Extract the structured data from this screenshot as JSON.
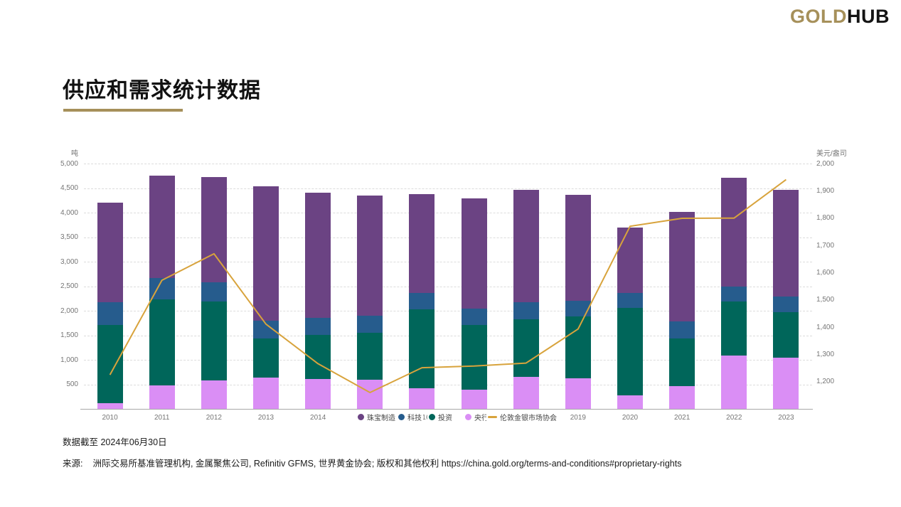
{
  "logo": {
    "part1": "GOLD",
    "part2": "HUB"
  },
  "page_title": "供应和需求统计数据",
  "footer": {
    "data_as_of": "数据截至 2024年06月30日",
    "source_label": "来源:",
    "source_text": "洲际交易所基准管理机构, 金属聚焦公司, Refinitiv GFMS, 世界黄金协会; 版权和其他权利 https://china.gold.org/terms-and-conditions#proprietary-rights"
  },
  "chart_data": {
    "type": "bar",
    "subtype": "stacked-bars-with-line",
    "categories": [
      "2010",
      "2011",
      "2012",
      "2013",
      "2014",
      "2015",
      "2016",
      "2017",
      "2018",
      "2019",
      "2020",
      "2021",
      "2022",
      "2023"
    ],
    "left_axis": {
      "label": "吨",
      "min": 0,
      "max": 5000,
      "tick_step": 500,
      "tick_values": [
        500,
        1000,
        1500,
        2000,
        2500,
        3000,
        3500,
        4000,
        4500,
        5000
      ]
    },
    "right_axis": {
      "label": "美元/盎司",
      "baseline_value": 1100,
      "top_value": 2000,
      "tick_values": [
        1200,
        1300,
        1400,
        1500,
        1600,
        1700,
        1800,
        1900,
        2000
      ]
    },
    "grid": "horizontal-dashed",
    "legend_position": "overlapping-x-axis",
    "stack_order_bottom_to_top": [
      "央行",
      "投资",
      "科技",
      "珠宝制造"
    ],
    "series": [
      {
        "name": "珠宝制造",
        "type": "bar",
        "color": "#6b4383",
        "values": [
          2030,
          2090,
          2150,
          2740,
          2550,
          2460,
          2010,
          2245,
          2285,
          2155,
          1330,
          2230,
          2225,
          2185
        ]
      },
      {
        "name": "科技",
        "type": "bar",
        "color": "#265c8d",
        "values": [
          465,
          430,
          385,
          350,
          350,
          350,
          330,
          335,
          345,
          320,
          300,
          345,
          305,
          315
        ]
      },
      {
        "name": "投资",
        "type": "bar",
        "color": "#00665a",
        "values": [
          1590,
          1755,
          1610,
          805,
          900,
          955,
          1610,
          1315,
          1180,
          1265,
          1780,
          975,
          1100,
          930
        ]
      },
      {
        "name": "央行",
        "type": "bar",
        "color": "#da8ef5",
        "values": [
          120,
          480,
          585,
          635,
          610,
          590,
          420,
          395,
          650,
          625,
          280,
          465,
          1085,
          1040
        ]
      },
      {
        "name": "伦敦金银市场协会",
        "type": "line",
        "color": "#d8a33c",
        "values": [
          1225,
          1572,
          1669,
          1411,
          1266,
          1160,
          1251,
          1257,
          1268,
          1393,
          1770,
          1799,
          1800,
          1941
        ]
      }
    ]
  }
}
